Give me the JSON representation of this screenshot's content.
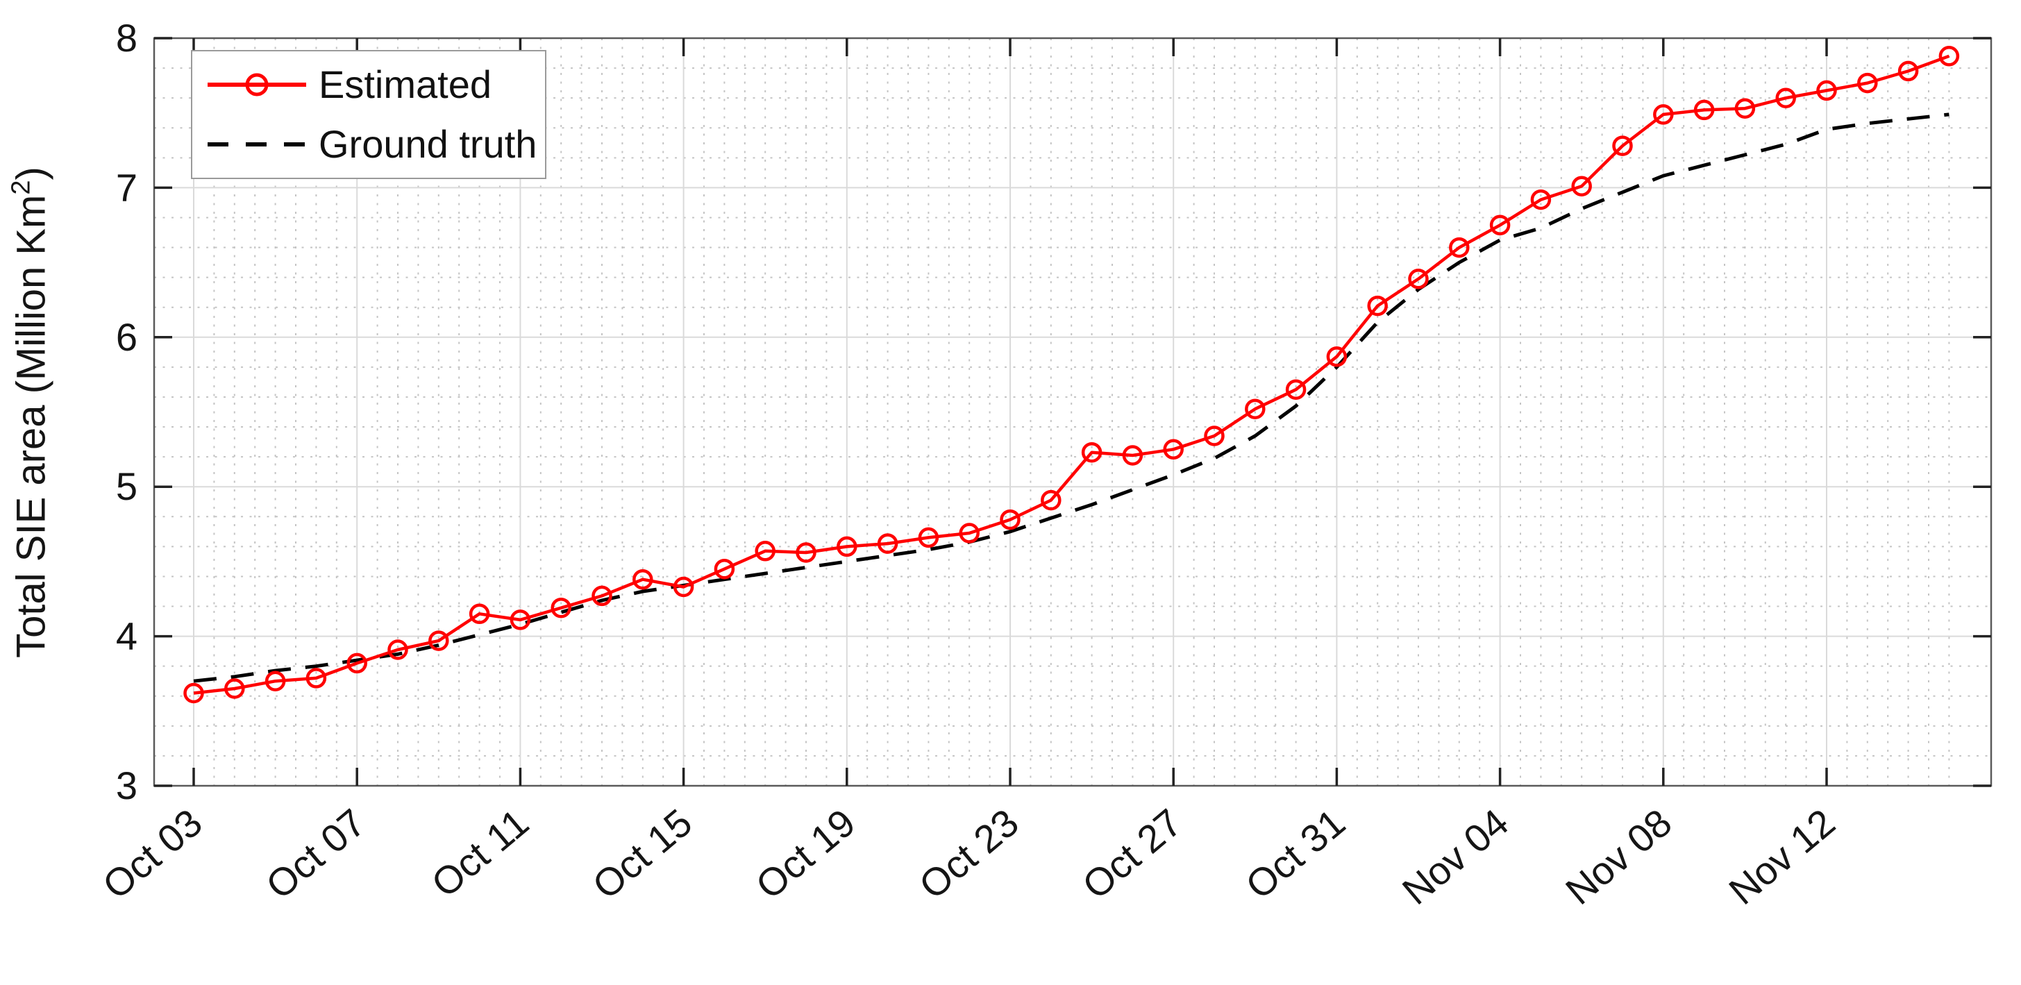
{
  "chart_data": {
    "type": "line",
    "title": "",
    "xlabel": "",
    "ylabel": "Total SIE area (Million Km²)",
    "ylabel_main": "Total SIE area (Million Km",
    "ylabel_sup": "2",
    "ylabel_close": ")",
    "ylim": [
      3,
      8
    ],
    "y_tick_labels": [
      "3",
      "4",
      "5",
      "6",
      "7",
      "8"
    ],
    "y_major_step": 1,
    "y_minor_step": 0.2,
    "x_minor_step_days": 0.5,
    "x_major_tick_every_days": 4,
    "x_major_tick_labels": [
      "Oct 03",
      "Oct 07",
      "Oct 11",
      "Oct 15",
      "Oct 19",
      "Oct 23",
      "Oct 27",
      "Oct 31",
      "Nov 04",
      "Nov 08",
      "Nov 12"
    ],
    "x": [
      "Oct 03",
      "Oct 04",
      "Oct 05",
      "Oct 06",
      "Oct 07",
      "Oct 08",
      "Oct 09",
      "Oct 10",
      "Oct 11",
      "Oct 12",
      "Oct 13",
      "Oct 14",
      "Oct 15",
      "Oct 16",
      "Oct 17",
      "Oct 18",
      "Oct 19",
      "Oct 20",
      "Oct 21",
      "Oct 22",
      "Oct 23",
      "Oct 24",
      "Oct 25",
      "Oct 26",
      "Oct 27",
      "Oct 28",
      "Oct 29",
      "Oct 30",
      "Oct 31",
      "Nov 01",
      "Nov 02",
      "Nov 03",
      "Nov 04",
      "Nov 05",
      "Nov 06",
      "Nov 07",
      "Nov 08",
      "Nov 09",
      "Nov 10",
      "Nov 11",
      "Nov 12",
      "Nov 13",
      "Nov 14",
      "Nov 15"
    ],
    "series": [
      {
        "name": "Estimated",
        "color": "#ff0000",
        "line_style": "solid",
        "marker": "circle",
        "values": [
          3.62,
          3.65,
          3.7,
          3.72,
          3.82,
          3.91,
          3.97,
          4.15,
          4.11,
          4.19,
          4.27,
          4.38,
          4.33,
          4.45,
          4.57,
          4.56,
          4.6,
          4.62,
          4.66,
          4.69,
          4.78,
          4.91,
          5.23,
          5.21,
          5.25,
          5.34,
          5.52,
          5.65,
          5.87,
          6.21,
          6.39,
          6.6,
          6.75,
          6.92,
          7.01,
          7.28,
          7.49,
          7.52,
          7.53,
          7.6,
          7.65,
          7.7,
          7.78,
          7.88
        ]
      },
      {
        "name": "Ground truth",
        "color": "#000000",
        "line_style": "dashed",
        "marker": "none",
        "values": [
          3.7,
          3.73,
          3.77,
          3.8,
          3.84,
          3.88,
          3.94,
          4.01,
          4.08,
          4.16,
          4.24,
          4.3,
          4.34,
          4.38,
          4.42,
          4.46,
          4.5,
          4.54,
          4.58,
          4.63,
          4.7,
          4.79,
          4.88,
          4.98,
          5.08,
          5.19,
          5.34,
          5.54,
          5.8,
          6.1,
          6.32,
          6.5,
          6.65,
          6.73,
          6.86,
          6.97,
          7.08,
          7.15,
          7.22,
          7.29,
          7.39,
          7.43,
          7.46,
          7.49
        ]
      }
    ],
    "legend_position": "top-left",
    "grid": {
      "major": true,
      "minor_dotted": true
    }
  },
  "colors": {
    "estimated": "#ff0000",
    "ground_truth": "#000000",
    "grid_major": "#dadada",
    "grid_minor": "#c4c4c4",
    "axis_frame": "#5a5a5a",
    "tick_mark": "#222222",
    "text": "#151515",
    "legend_border": "#9a9a9a",
    "background": "#ffffff"
  }
}
